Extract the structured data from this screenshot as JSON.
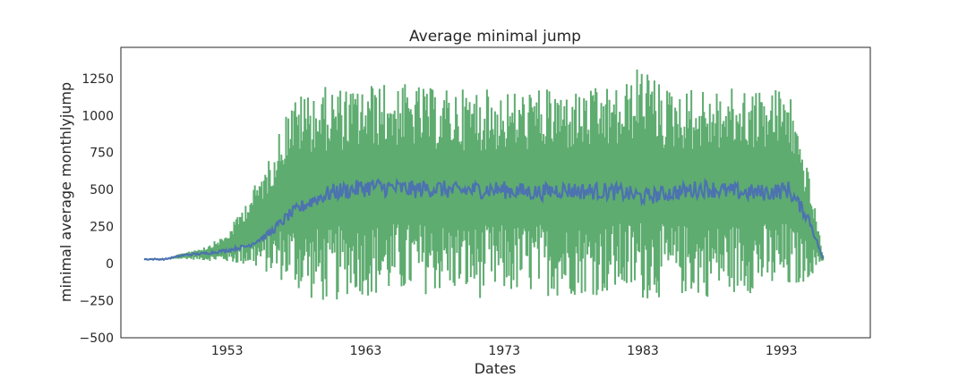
{
  "chart_data": {
    "type": "line",
    "title": "Average minimal jump",
    "xlabel": "Dates",
    "ylabel": "minimal average monthlyjump",
    "xlim": [
      "1945-05-01",
      "1999-06-01"
    ],
    "ylim": [
      -500,
      1460
    ],
    "x_ticks": [
      1953,
      1963,
      1973,
      1983,
      1993
    ],
    "x_tick_labels": [
      "1953",
      "1963",
      "1973",
      "1983",
      "1993"
    ],
    "y_ticks": [
      -500,
      -250,
      0,
      250,
      500,
      750,
      1000,
      1250
    ],
    "y_tick_labels": [
      "−500",
      "−250",
      "0",
      "250",
      "500",
      "750",
      "1000",
      "1250"
    ],
    "grid": false,
    "legend": "none",
    "series": [
      {
        "color": "#55a868",
        "style": "monthly min/max range",
        "x": [
          "1947-01-01",
          "1948-07-01",
          "1950-01-01",
          "1951-07-01",
          "1953-01-01",
          "1954-07-01",
          "1956-01-01",
          "1957-07-01",
          "1959-01-01",
          "1960-07-01",
          "1962-01-01",
          "1963-07-01",
          "1965-01-01",
          "1966-07-01",
          "1968-01-01",
          "1969-07-01",
          "1971-01-01",
          "1972-07-01",
          "1974-01-01",
          "1975-07-01",
          "1977-01-01",
          "1978-07-01",
          "1980-01-01",
          "1981-07-01",
          "1983-01-01",
          "1984-07-01",
          "1986-01-01",
          "1987-07-01",
          "1989-01-01",
          "1990-07-01",
          "1992-01-01",
          "1993-07-01",
          "1995-01-01",
          "1996-01-01"
        ],
        "low": [
          30,
          30,
          30,
          20,
          10,
          -20,
          -70,
          -150,
          -250,
          -280,
          -200,
          -230,
          -220,
          -220,
          -200,
          -200,
          -240,
          -220,
          -210,
          -210,
          -230,
          -210,
          -220,
          -210,
          -250,
          -230,
          -220,
          -230,
          -210,
          -200,
          -200,
          -210,
          -100,
          20
        ],
        "high": [
          30,
          30,
          80,
          120,
          200,
          450,
          700,
          1100,
          1180,
          1200,
          1180,
          1220,
          1220,
          1210,
          1180,
          1180,
          1190,
          1170,
          1170,
          1180,
          1180,
          1170,
          1190,
          1190,
          1370,
          1190,
          1190,
          1180,
          1180,
          1190,
          1180,
          1210,
          600,
          60
        ]
      },
      {
        "color": "#4c72b0",
        "style": "monthly average",
        "x": [
          "1947-01-01",
          "1948-07-01",
          "1950-01-01",
          "1951-07-01",
          "1953-01-01",
          "1954-07-01",
          "1956-01-01",
          "1957-07-01",
          "1959-01-01",
          "1960-07-01",
          "1962-01-01",
          "1963-07-01",
          "1965-01-01",
          "1966-07-01",
          "1968-01-01",
          "1969-07-01",
          "1971-01-01",
          "1972-07-01",
          "1974-01-01",
          "1975-07-01",
          "1977-01-01",
          "1978-07-01",
          "1980-01-01",
          "1981-07-01",
          "1983-01-01",
          "1984-07-01",
          "1986-01-01",
          "1987-07-01",
          "1989-01-01",
          "1990-07-01",
          "1992-01-01",
          "1993-07-01",
          "1995-01-01",
          "1996-01-01"
        ],
        "values": [
          30,
          30,
          60,
          70,
          90,
          120,
          200,
          330,
          420,
          480,
          500,
          520,
          510,
          500,
          510,
          490,
          500,
          500,
          490,
          480,
          500,
          490,
          490,
          480,
          450,
          470,
          490,
          510,
          490,
          480,
          480,
          500,
          300,
          30
        ]
      }
    ]
  }
}
